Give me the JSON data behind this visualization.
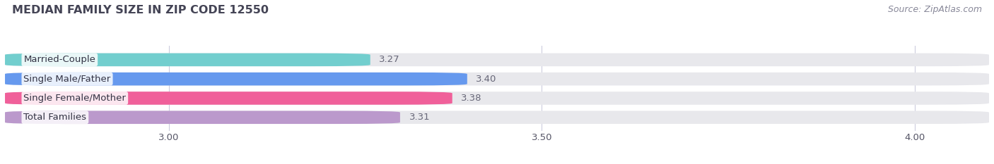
{
  "title": "MEDIAN FAMILY SIZE IN ZIP CODE 12550",
  "source": "Source: ZipAtlas.com",
  "categories": [
    "Married-Couple",
    "Single Male/Father",
    "Single Female/Mother",
    "Total Families"
  ],
  "values": [
    3.27,
    3.4,
    3.38,
    3.31
  ],
  "colors": [
    "#72cece",
    "#6699ee",
    "#f0609a",
    "#bb99cc"
  ],
  "bg_color": "#ffffff",
  "bar_bg_color": "#e8e8ec",
  "xlim_left": 2.78,
  "xlim_right": 4.1,
  "xticks": [
    3.0,
    3.5,
    4.0
  ],
  "bar_height": 0.68,
  "label_fontsize": 9.5,
  "value_fontsize": 9.5,
  "title_fontsize": 11.5,
  "source_fontsize": 9,
  "label_color": "#555566",
  "value_color": "#666677",
  "title_color": "#444455",
  "source_color": "#888899",
  "grid_color": "#ccccdd",
  "label_box_color": "#ffffff"
}
